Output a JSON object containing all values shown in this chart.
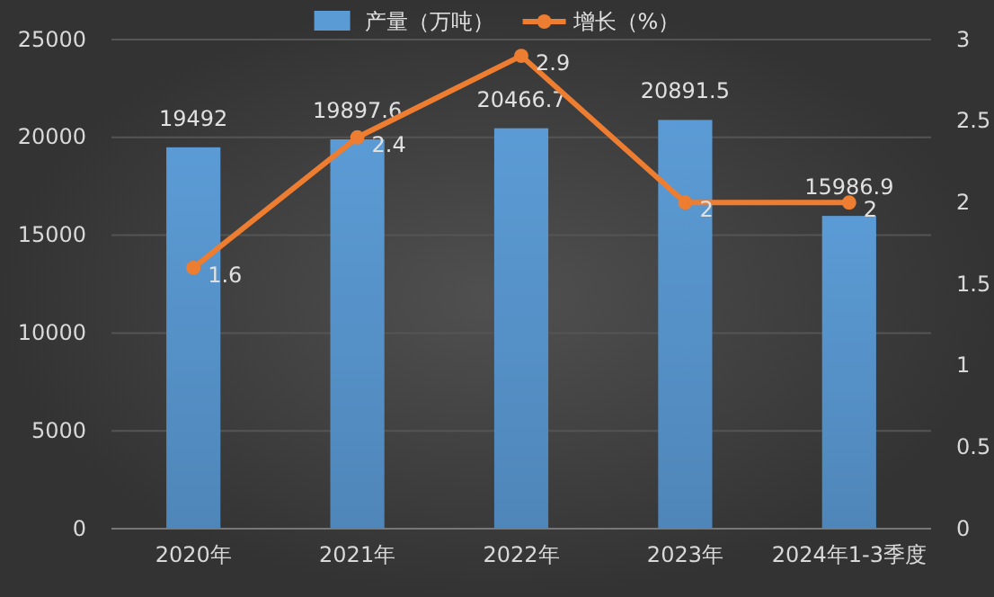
{
  "chart_data": {
    "type": "bar",
    "categories": [
      "2020年",
      "2021年",
      "2022年",
      "2023年",
      "2024年1-3季度"
    ],
    "series": [
      {
        "name": "产量（万吨）",
        "color": "#5b9bd5",
        "values": [
          19492,
          19897.6,
          20466.7,
          20891.5,
          15986.9
        ]
      },
      {
        "name": "增长（%）",
        "type": "line",
        "axis": "y2",
        "color": "#ed7d31",
        "values": [
          1.6,
          2.4,
          2.9,
          2,
          2
        ]
      }
    ],
    "ylim": [
      0,
      25000
    ],
    "yticks": [
      0,
      5000,
      10000,
      15000,
      20000,
      25000
    ],
    "y2lim": [
      0,
      3
    ],
    "y2ticks": [
      0,
      0.5,
      1,
      1.5,
      2,
      2.5,
      3
    ],
    "grid": "y",
    "legend": "top",
    "marker": "circle",
    "line_style": "solid",
    "data_labels": true
  }
}
